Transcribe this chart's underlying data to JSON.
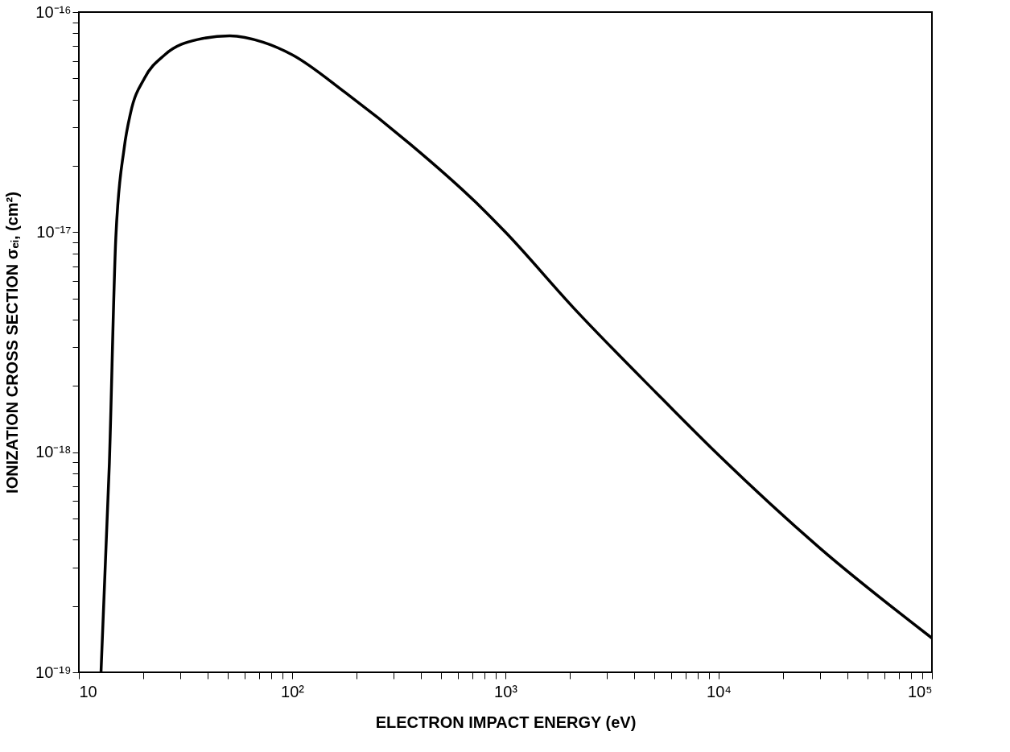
{
  "chart_data": {
    "type": "line",
    "xlabel": "ELECTRON IMPACT ENERGY (eV)",
    "ylabel": "IONIZATION CROSS SECTION σₑᵢ, (cm²)",
    "log": "xy",
    "grid": false,
    "marker": "none",
    "line_style": "solid",
    "xlim": [
      10,
      100000
    ],
    "ylim": [
      1e-19,
      1e-16
    ],
    "xticks": [
      {
        "value": 10,
        "label": "10"
      },
      {
        "value": 20,
        "label": null
      },
      {
        "value": 30,
        "label": null
      },
      {
        "value": 40,
        "label": null
      },
      {
        "value": 50,
        "label": null
      },
      {
        "value": 60,
        "label": null
      },
      {
        "value": 70,
        "label": null
      },
      {
        "value": 80,
        "label": null
      },
      {
        "value": 90,
        "label": null
      },
      {
        "value": 100,
        "label": "10²"
      },
      {
        "value": 200,
        "label": null
      },
      {
        "value": 300,
        "label": null
      },
      {
        "value": 400,
        "label": null
      },
      {
        "value": 500,
        "label": null
      },
      {
        "value": 600,
        "label": null
      },
      {
        "value": 700,
        "label": null
      },
      {
        "value": 800,
        "label": null
      },
      {
        "value": 900,
        "label": null
      },
      {
        "value": 1000,
        "label": "10³"
      },
      {
        "value": 2000,
        "label": null
      },
      {
        "value": 3000,
        "label": null
      },
      {
        "value": 4000,
        "label": null
      },
      {
        "value": 5000,
        "label": null
      },
      {
        "value": 6000,
        "label": null
      },
      {
        "value": 7000,
        "label": null
      },
      {
        "value": 8000,
        "label": null
      },
      {
        "value": 9000,
        "label": null
      },
      {
        "value": 10000,
        "label": "10⁴"
      },
      {
        "value": 20000,
        "label": null
      },
      {
        "value": 30000,
        "label": null
      },
      {
        "value": 40000,
        "label": null
      },
      {
        "value": 50000,
        "label": null
      },
      {
        "value": 60000,
        "label": null
      },
      {
        "value": 70000,
        "label": null
      },
      {
        "value": 80000,
        "label": null
      },
      {
        "value": 90000,
        "label": null
      },
      {
        "value": 100000,
        "label": "10⁵"
      }
    ],
    "yticks": [
      {
        "value": 1e-19,
        "label": "10⁻¹⁹"
      },
      {
        "value": 2e-19,
        "label": null
      },
      {
        "value": 3e-19,
        "label": null
      },
      {
        "value": 4e-19,
        "label": null
      },
      {
        "value": 5e-19,
        "label": null
      },
      {
        "value": 6e-19,
        "label": null
      },
      {
        "value": 7e-19,
        "label": null
      },
      {
        "value": 8e-19,
        "label": null
      },
      {
        "value": 9e-19,
        "label": null
      },
      {
        "value": 1e-18,
        "label": "10⁻¹⁸"
      },
      {
        "value": 2e-18,
        "label": null
      },
      {
        "value": 3e-18,
        "label": null
      },
      {
        "value": 4e-18,
        "label": null
      },
      {
        "value": 5e-18,
        "label": null
      },
      {
        "value": 6e-18,
        "label": null
      },
      {
        "value": 7e-18,
        "label": null
      },
      {
        "value": 8e-18,
        "label": null
      },
      {
        "value": 9e-18,
        "label": null
      },
      {
        "value": 1e-17,
        "label": "10⁻¹⁷"
      },
      {
        "value": 2e-17,
        "label": null
      },
      {
        "value": 3e-17,
        "label": null
      },
      {
        "value": 4e-17,
        "label": null
      },
      {
        "value": 5e-17,
        "label": null
      },
      {
        "value": 6e-17,
        "label": null
      },
      {
        "value": 7e-17,
        "label": null
      },
      {
        "value": 8e-17,
        "label": null
      },
      {
        "value": 9e-17,
        "label": null
      },
      {
        "value": 1e-16,
        "label": "10⁻¹⁶"
      }
    ],
    "series": [
      {
        "color": "#000000",
        "x": [
          12.7,
          13.9,
          14.9,
          16.3,
          17.5,
          20.3,
          25.3,
          36,
          51,
          73,
          100,
          178,
          360,
          730,
          1000,
          2100,
          5100,
          10000,
          30000,
          100000
        ],
        "values": [
          1e-19,
          8.9e-19,
          9.4e-18,
          2.4e-17,
          3.5e-17,
          5e-17,
          6.4e-17,
          7.5e-17,
          7.8e-17,
          7.3e-17,
          6.4e-17,
          4.3e-17,
          2.5e-17,
          1.36e-17,
          1e-17,
          4.5e-18,
          1.86e-18,
          9.7e-19,
          3.65e-19,
          1.43e-19
        ]
      }
    ]
  }
}
